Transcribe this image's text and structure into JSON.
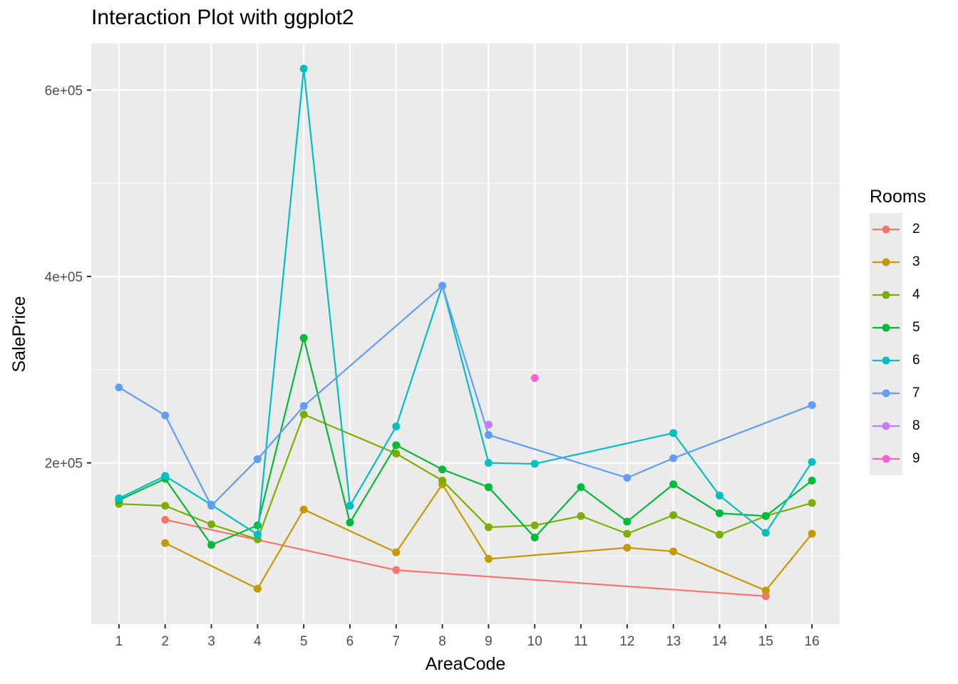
{
  "chart_data": {
    "type": "line",
    "title": "Interaction Plot with ggplot2",
    "xlabel": "AreaCode",
    "ylabel": "SalePrice",
    "x_ticks": [
      "1",
      "2",
      "3",
      "4",
      "5",
      "6",
      "7",
      "8",
      "9",
      "10",
      "11",
      "12",
      "13",
      "14",
      "15",
      "16"
    ],
    "y_ticks": [
      {
        "value": 200000,
        "label": "2e+05"
      },
      {
        "value": 400000,
        "label": "4e+05"
      },
      {
        "value": 600000,
        "label": "6e+05"
      }
    ],
    "xlim": [
      0.4,
      16.6
    ],
    "ylim": [
      27000,
      650000
    ],
    "grid": true,
    "legend_title": "Rooms",
    "legend_position": "right",
    "series": [
      {
        "name": "2",
        "color": "#F8766D",
        "points": [
          [
            2,
            139000
          ],
          [
            7,
            85000
          ],
          [
            15,
            57000
          ]
        ]
      },
      {
        "name": "3",
        "color": "#C49A00",
        "points": [
          [
            2,
            114000
          ],
          [
            4,
            65000
          ],
          [
            5,
            150000
          ],
          [
            7,
            104000
          ],
          [
            8,
            177000
          ],
          [
            9,
            97000
          ],
          [
            12,
            109000
          ],
          [
            13,
            105000
          ],
          [
            15,
            63000
          ],
          [
            16,
            124000
          ]
        ]
      },
      {
        "name": "4",
        "color": "#7CAE00",
        "points": [
          [
            1,
            156000
          ],
          [
            2,
            154000
          ],
          [
            3,
            134000
          ],
          [
            4,
            118000
          ],
          [
            5,
            252000
          ],
          [
            7,
            210000
          ],
          [
            8,
            181000
          ],
          [
            9,
            131000
          ],
          [
            10,
            133000
          ],
          [
            11,
            143000
          ],
          [
            12,
            124000
          ],
          [
            13,
            144000
          ],
          [
            14,
            123000
          ],
          [
            15,
            143000
          ],
          [
            16,
            157000
          ]
        ]
      },
      {
        "name": "5",
        "color": "#00BA38",
        "points": [
          [
            1,
            160000
          ],
          [
            2,
            183000
          ],
          [
            3,
            112000
          ],
          [
            4,
            133000
          ],
          [
            5,
            334000
          ],
          [
            6,
            136000
          ],
          [
            7,
            219000
          ],
          [
            8,
            193000
          ],
          [
            9,
            174000
          ],
          [
            10,
            120000
          ],
          [
            11,
            174000
          ],
          [
            12,
            137000
          ],
          [
            13,
            177000
          ],
          [
            14,
            146000
          ],
          [
            15,
            143000
          ],
          [
            16,
            181000
          ]
        ]
      },
      {
        "name": "6",
        "color": "#00BFC4",
        "points": [
          [
            1,
            162000
          ],
          [
            2,
            186000
          ],
          [
            3,
            155000
          ],
          [
            4,
            123000
          ],
          [
            5,
            623000
          ],
          [
            6,
            154000
          ],
          [
            7,
            239000
          ],
          [
            8,
            390000
          ],
          [
            9,
            200000
          ],
          [
            10,
            199000
          ],
          [
            13,
            232000
          ],
          [
            14,
            165000
          ],
          [
            15,
            125000
          ],
          [
            16,
            201000
          ]
        ]
      },
      {
        "name": "7",
        "color": "#619CFF",
        "points": [
          [
            1,
            281000
          ],
          [
            2,
            251000
          ],
          [
            3,
            154000
          ],
          [
            4,
            204000
          ],
          [
            5,
            261000
          ],
          [
            8,
            390000
          ],
          [
            9,
            230000
          ],
          [
            12,
            184000
          ],
          [
            13,
            205000
          ],
          [
            16,
            262000
          ]
        ]
      },
      {
        "name": "8",
        "color": "#C77CFF",
        "points": [
          [
            9,
            241000
          ]
        ]
      },
      {
        "name": "9",
        "color": "#FF61CC",
        "points": [
          [
            10,
            291000
          ]
        ]
      }
    ]
  }
}
